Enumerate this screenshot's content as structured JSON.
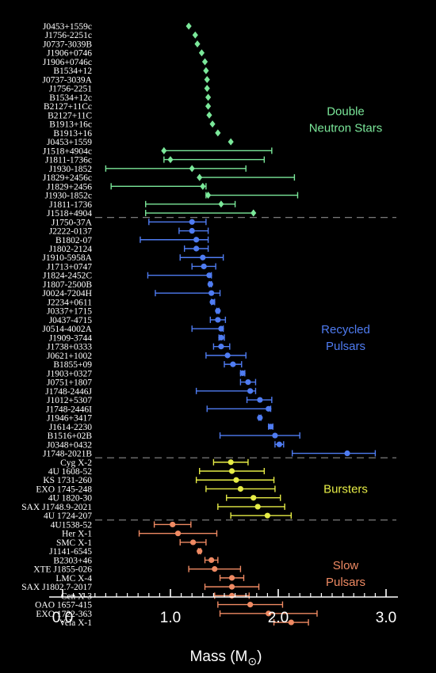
{
  "chart_data": {
    "type": "scatter",
    "title": "",
    "xlabel": "Mass (M",
    "xlabel_unit": "⊙",
    "xlim": [
      0.0,
      3.0
    ],
    "x_ticks": [
      "0.0",
      "1.0",
      "2.0",
      "3.0"
    ],
    "grid": false,
    "groups": [
      {
        "name": "Double Neutron Stars",
        "label_lines": [
          "Double",
          "Neutron Stars"
        ],
        "color": "#7be89a",
        "marker": "diamond",
        "points": [
          {
            "name": "J0453+1559c",
            "mass": 1.17,
            "lo": null,
            "hi": null
          },
          {
            "name": "J1756-2251c",
            "mass": 1.23,
            "lo": null,
            "hi": null
          },
          {
            "name": "J0737-3039B",
            "mass": 1.25,
            "lo": null,
            "hi": null
          },
          {
            "name": "J1906+0746",
            "mass": 1.29,
            "lo": null,
            "hi": null
          },
          {
            "name": "J1906+0746c",
            "mass": 1.32,
            "lo": null,
            "hi": null
          },
          {
            "name": "B1534+12",
            "mass": 1.33,
            "lo": null,
            "hi": null
          },
          {
            "name": "J0737-3039A",
            "mass": 1.34,
            "lo": null,
            "hi": null
          },
          {
            "name": "J1756-2251",
            "mass": 1.34,
            "lo": null,
            "hi": null
          },
          {
            "name": "B1534+12c",
            "mass": 1.35,
            "lo": null,
            "hi": null
          },
          {
            "name": "B2127+11Cc",
            "mass": 1.35,
            "lo": null,
            "hi": null
          },
          {
            "name": "B2127+11C",
            "mass": 1.36,
            "lo": null,
            "hi": null
          },
          {
            "name": "B1913+16c",
            "mass": 1.39,
            "lo": null,
            "hi": null
          },
          {
            "name": "B1913+16",
            "mass": 1.44,
            "lo": null,
            "hi": null
          },
          {
            "name": "J0453+1559",
            "mass": 1.56,
            "lo": null,
            "hi": null
          },
          {
            "name": "J1518+4904c",
            "mass": 0.94,
            "lo": 0.94,
            "hi": 1.94
          },
          {
            "name": "J1811-1736c",
            "mass": 1.0,
            "lo": 0.94,
            "hi": 1.87
          },
          {
            "name": "J1930-1852",
            "mass": 1.2,
            "lo": 0.4,
            "hi": 1.7
          },
          {
            "name": "J1829+2456c",
            "mass": 1.27,
            "lo": 1.27,
            "hi": 2.15
          },
          {
            "name": "J1829+2456",
            "mass": 1.3,
            "lo": 0.45,
            "hi": 1.33
          },
          {
            "name": "J1930-1852c",
            "mass": 1.35,
            "lo": 1.33,
            "hi": 2.18
          },
          {
            "name": "J1811-1736",
            "mass": 1.47,
            "lo": 0.77,
            "hi": 1.6
          },
          {
            "name": "J1518+4904",
            "mass": 1.77,
            "lo": 0.77,
            "hi": 1.77
          }
        ]
      },
      {
        "name": "Recycled Pulsars",
        "label_lines": [
          "Recycled",
          "Pulsars"
        ],
        "color": "#4f7cf2",
        "marker": "circle",
        "points": [
          {
            "name": "J1750-37A",
            "mass": 1.2,
            "lo": 0.8,
            "hi": 1.33
          },
          {
            "name": "J2222-0137",
            "mass": 1.2,
            "lo": 1.08,
            "hi": 1.35
          },
          {
            "name": "B1802-07",
            "mass": 1.24,
            "lo": 0.72,
            "hi": 1.35
          },
          {
            "name": "J1802-2124",
            "mass": 1.24,
            "lo": 1.13,
            "hi": 1.35
          },
          {
            "name": "J1910-5958A",
            "mass": 1.3,
            "lo": 1.09,
            "hi": 1.49
          },
          {
            "name": "J1713+0747",
            "mass": 1.31,
            "lo": 1.2,
            "hi": 1.42
          },
          {
            "name": "J1824-2452C",
            "mass": 1.36,
            "lo": 0.79,
            "hi": 1.38
          },
          {
            "name": "J1807-2500B",
            "mass": 1.37,
            "lo": 1.36,
            "hi": 1.38
          },
          {
            "name": "J0024-7204H",
            "mass": 1.38,
            "lo": 0.86,
            "hi": 1.46
          },
          {
            "name": "J2234+0611",
            "mass": 1.39,
            "lo": 1.38,
            "hi": 1.41
          },
          {
            "name": "J0337+1715",
            "mass": 1.44,
            "lo": 1.43,
            "hi": 1.45
          },
          {
            "name": "J0437-4715",
            "mass": 1.44,
            "lo": 1.37,
            "hi": 1.51
          },
          {
            "name": "J0514-4002A",
            "mass": 1.47,
            "lo": 1.2,
            "hi": 1.49
          },
          {
            "name": "J1909-3744",
            "mass": 1.47,
            "lo": 1.45,
            "hi": 1.5
          },
          {
            "name": "J1738+0333",
            "mass": 1.47,
            "lo": 1.4,
            "hi": 1.55
          },
          {
            "name": "J0621+1002",
            "mass": 1.53,
            "lo": 1.33,
            "hi": 1.7
          },
          {
            "name": "B1855+09",
            "mass": 1.58,
            "lo": 1.5,
            "hi": 1.66
          },
          {
            "name": "J1903+0327",
            "mass": 1.67,
            "lo": 1.65,
            "hi": 1.69
          },
          {
            "name": "J0751+1807",
            "mass": 1.72,
            "lo": 1.65,
            "hi": 1.79
          },
          {
            "name": "J1748-2446J",
            "mass": 1.74,
            "lo": 1.24,
            "hi": 1.79
          },
          {
            "name": "J1012+5307",
            "mass": 1.83,
            "lo": 1.71,
            "hi": 1.94
          },
          {
            "name": "J1748-2446I",
            "mass": 1.91,
            "lo": 1.34,
            "hi": 1.93
          },
          {
            "name": "J1946+3417",
            "mass": 1.83,
            "lo": 1.82,
            "hi": 1.84
          },
          {
            "name": "J1614-2230",
            "mass": 1.93,
            "lo": 1.91,
            "hi": 1.95
          },
          {
            "name": "B1516+02B",
            "mass": 1.97,
            "lo": 1.46,
            "hi": 2.2
          },
          {
            "name": "J0348+0432",
            "mass": 2.01,
            "lo": 1.97,
            "hi": 2.05
          },
          {
            "name": "J1748-2021B",
            "mass": 2.64,
            "lo": 2.13,
            "hi": 2.9
          }
        ]
      },
      {
        "name": "Bursters",
        "label_lines": [
          "Bursters"
        ],
        "color": "#e6ec46",
        "marker": "circle",
        "points": [
          {
            "name": "Cyg X-2",
            "mass": 1.56,
            "lo": 1.4,
            "hi": 1.72
          },
          {
            "name": "4U 1608-52",
            "mass": 1.57,
            "lo": 1.27,
            "hi": 1.87
          },
          {
            "name": "KS 1731-260",
            "mass": 1.61,
            "lo": 1.24,
            "hi": 1.96
          },
          {
            "name": "EXO 1745-248",
            "mass": 1.65,
            "lo": 1.33,
            "hi": 1.97
          },
          {
            "name": "4U 1820-30",
            "mass": 1.77,
            "lo": 1.52,
            "hi": 2.02
          },
          {
            "name": "SAX J1748.9-2021",
            "mass": 1.81,
            "lo": 1.44,
            "hi": 2.06
          },
          {
            "name": "4U 1724-207",
            "mass": 1.9,
            "lo": 1.56,
            "hi": 2.12
          }
        ]
      },
      {
        "name": "Slow Pulsars",
        "label_lines": [
          "Slow",
          "Pulsars"
        ],
        "color": "#ef8a63",
        "marker": "circle",
        "points": [
          {
            "name": "4U1538-52",
            "mass": 1.02,
            "lo": 0.85,
            "hi": 1.19
          },
          {
            "name": "Her X-1",
            "mass": 1.07,
            "lo": 0.71,
            "hi": 1.43
          },
          {
            "name": "SMC X-1",
            "mass": 1.21,
            "lo": 1.09,
            "hi": 1.33
          },
          {
            "name": "J1141-6545",
            "mass": 1.27,
            "lo": 1.26,
            "hi": 1.28
          },
          {
            "name": "B2303+46",
            "mass": 1.38,
            "lo": 1.32,
            "hi": 1.44
          },
          {
            "name": "XTE J1855-026",
            "mass": 1.41,
            "lo": 1.17,
            "hi": 1.65
          },
          {
            "name": "LMC X-4",
            "mass": 1.57,
            "lo": 1.46,
            "hi": 1.68
          },
          {
            "name": "SAX J1802.7-2017",
            "mass": 1.57,
            "lo": 1.32,
            "hi": 1.82
          },
          {
            "name": "Cen X-3",
            "mass": 1.57,
            "lo": 1.41,
            "hi": 1.73
          },
          {
            "name": "OAO 1657-415",
            "mass": 1.74,
            "lo": 1.44,
            "hi": 2.04
          },
          {
            "name": "EXO 1722-363",
            "mass": 1.91,
            "lo": 1.46,
            "hi": 2.36
          },
          {
            "name": "Vela X-1",
            "mass": 2.12,
            "lo": 1.96,
            "hi": 2.28
          }
        ]
      }
    ]
  }
}
